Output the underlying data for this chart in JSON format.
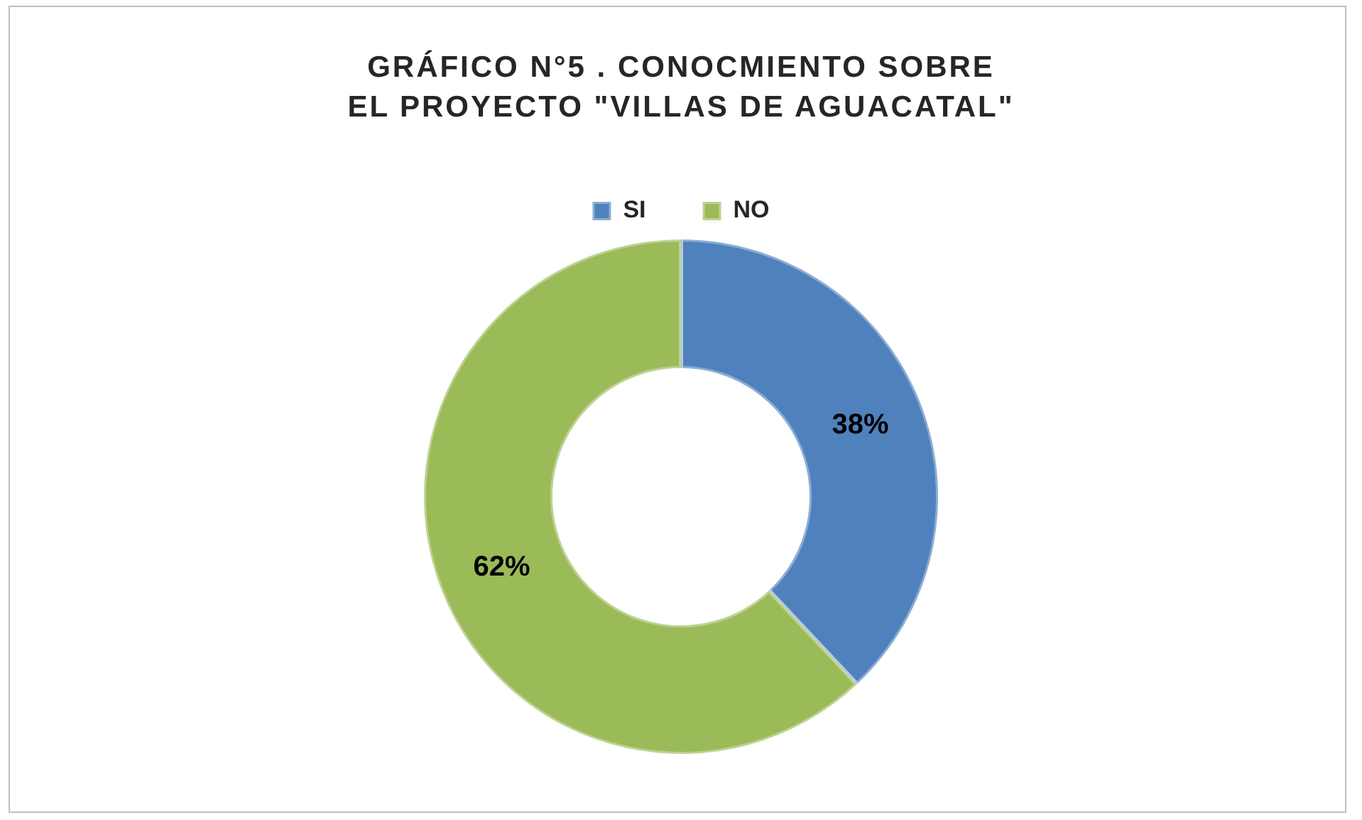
{
  "chart_data": {
    "type": "donut",
    "title": "GRÁFICO N°5 . CONOCMIENTO SOBRE EL PROYECTO \"VILLAS DE AGUACATAL\"",
    "categories": [
      "SI",
      "NO"
    ],
    "values": [
      38,
      62
    ],
    "colors": [
      "#4f81bd",
      "#9bbb59"
    ],
    "value_labels": [
      "38%",
      "62%"
    ],
    "legend": "top"
  }
}
